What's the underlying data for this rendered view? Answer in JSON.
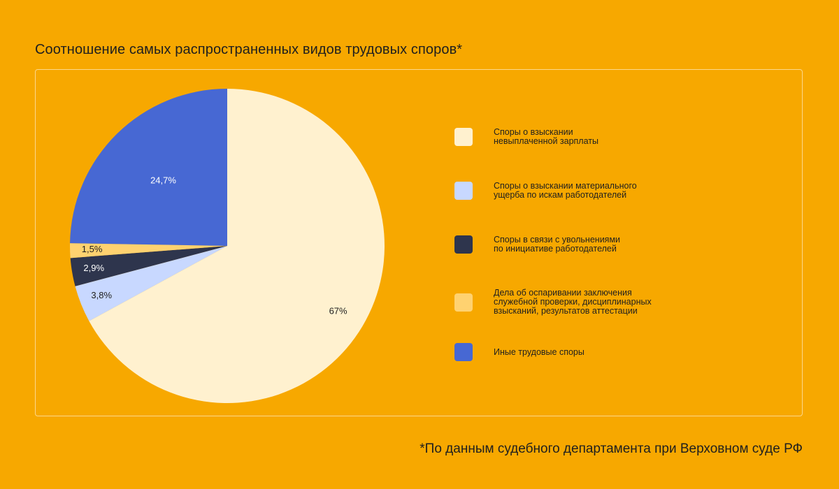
{
  "title": "Соотношение самых распространенных видов трудовых споров*",
  "footnote": "*По данным судебного департамента при Верховном суде РФ",
  "chart_data": {
    "type": "pie",
    "title": "Соотношение самых распространенных видов трудовых споров*",
    "slices": [
      {
        "name": "Споры о взыскании\nневыплаченной зарплаты",
        "value": 67,
        "label": "67%",
        "color": "#FFF1CF",
        "label_color": "#1f1f1f"
      },
      {
        "name": "Споры о взыскании материального\nущерба по искам работодателей",
        "value": 3.8,
        "label": "3,8%",
        "color": "#C8D8FF",
        "label_color": "#1f1f1f"
      },
      {
        "name": "Споры в связи с увольнениями\nпо инициативе работодателей",
        "value": 2.9,
        "label": "2,9%",
        "color": "#2E354D",
        "label_color": "#ffffff"
      },
      {
        "name": "Дела об оспаривании заключения\nслужебной проверки, дисциплинарных\nвзысканий, результатов аттестации",
        "value": 1.5,
        "label": "1,5%",
        "color": "#FFD270",
        "label_color": "#1f1f1f"
      },
      {
        "name": "Иные трудовые споры",
        "value": 24.7,
        "label": "24,7%",
        "color": "#4768D3",
        "label_color": "#ffffff"
      }
    ],
    "legend_position": "right"
  }
}
